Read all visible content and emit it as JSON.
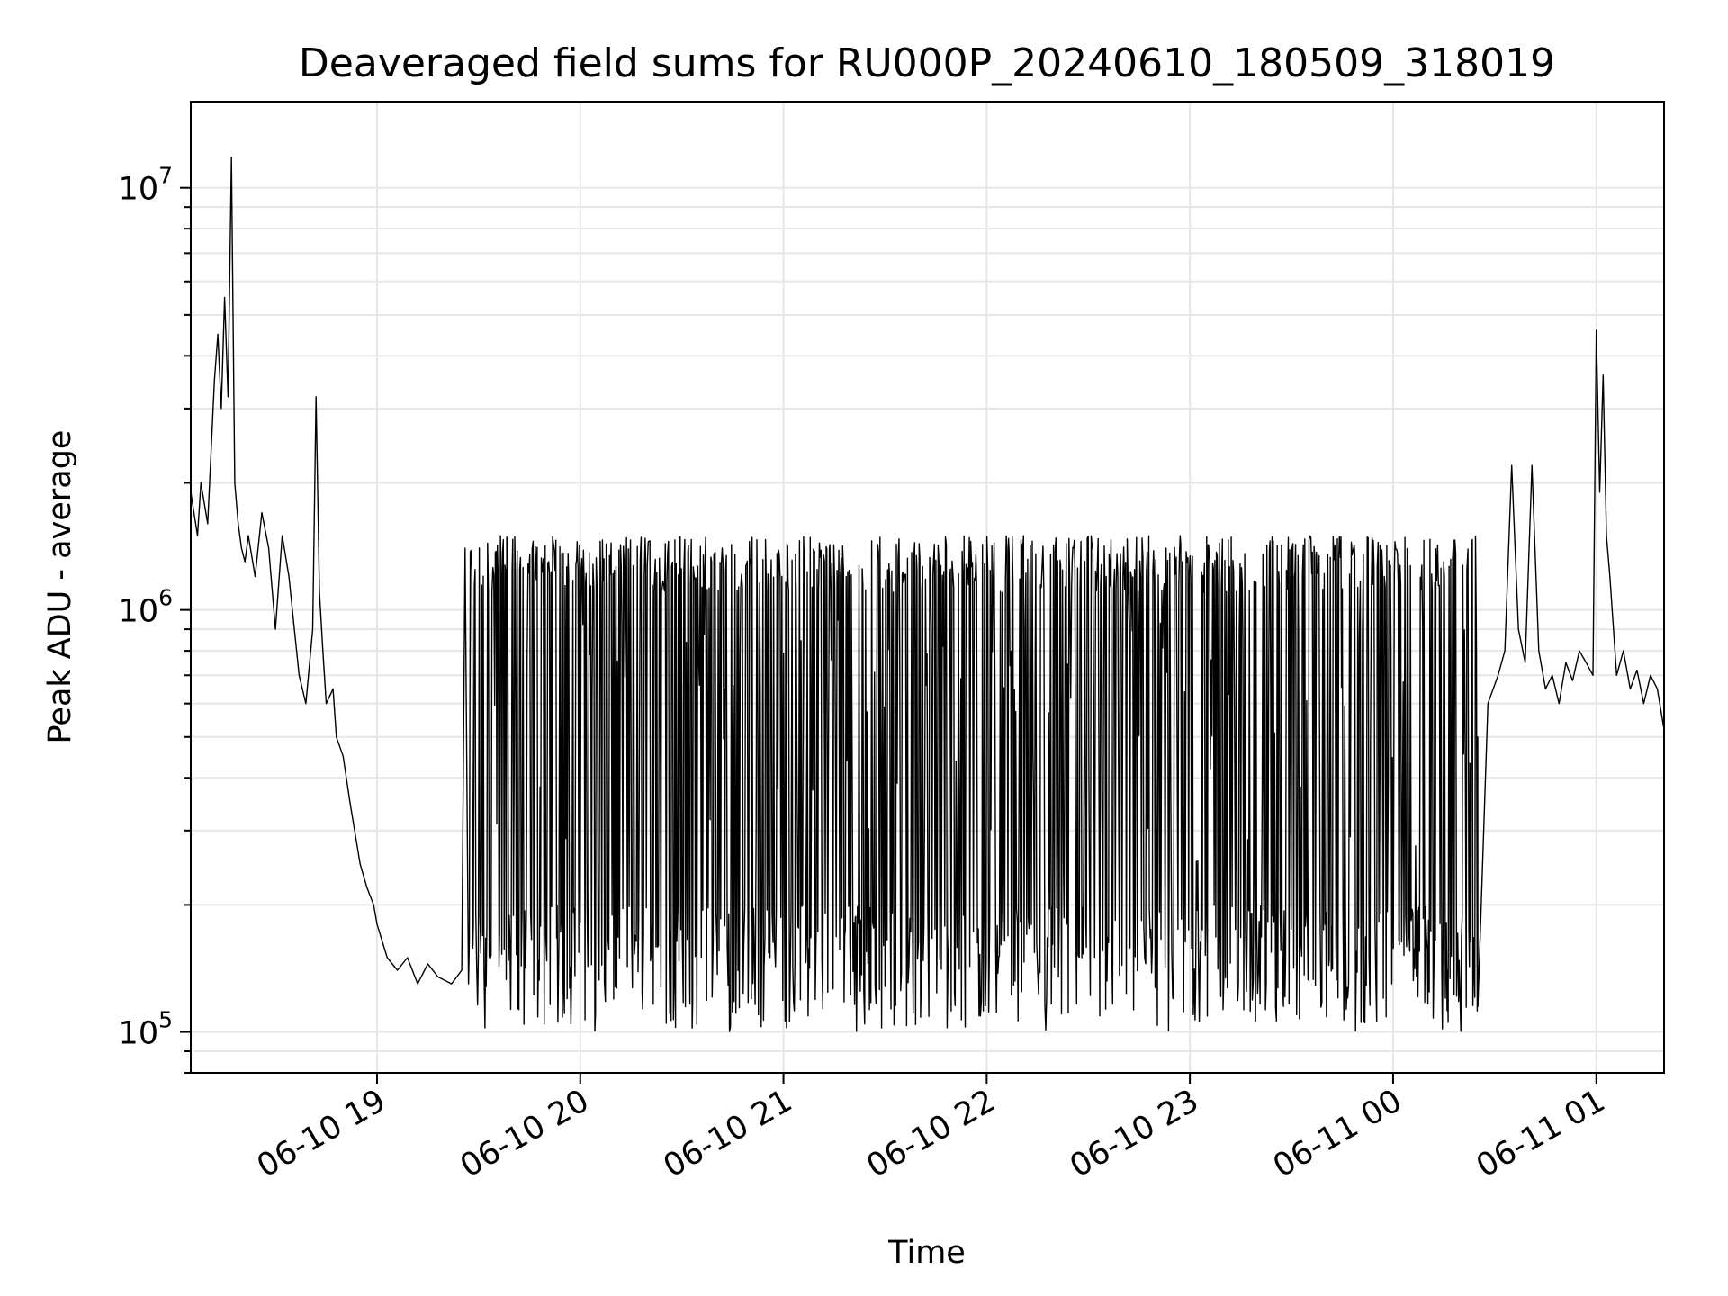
{
  "chart_data": {
    "type": "line",
    "title": "Deaveraged field sums for RU000P_20240610_180509_318019",
    "xlabel": "Time",
    "ylabel": "Peak ADU - average",
    "yscale": "log",
    "ylim": [
      80000,
      16000000
    ],
    "xlim": [
      "2024-06-10 18:05",
      "2024-06-11 01:20"
    ],
    "grid": true,
    "line_color": "#000000",
    "grid_color": "#e6e6e6",
    "y_ticks": [
      {
        "base": "10",
        "exp": "5",
        "value": 100000
      },
      {
        "base": "10",
        "exp": "6",
        "value": 1000000
      },
      {
        "base": "10",
        "exp": "7",
        "value": 10000000
      }
    ],
    "x_ticks": [
      {
        "label": "06-10 19",
        "time": "2024-06-10 19:00"
      },
      {
        "label": "06-10 20",
        "time": "2024-06-10 20:00"
      },
      {
        "label": "06-10 21",
        "time": "2024-06-10 21:00"
      },
      {
        "label": "06-10 22",
        "time": "2024-06-10 22:00"
      },
      {
        "label": "06-10 23",
        "time": "2024-06-10 23:00"
      },
      {
        "label": "06-11 00",
        "time": "2024-06-11 00:00"
      },
      {
        "label": "06-11 01",
        "time": "2024-06-11 01:00"
      }
    ],
    "series": [
      {
        "x": [
          "2024-06-10 18:05",
          "2024-06-10 18:07",
          "2024-06-10 18:08",
          "2024-06-10 18:10",
          "2024-06-10 18:12",
          "2024-06-10 18:13",
          "2024-06-10 18:14",
          "2024-06-10 18:15",
          "2024-06-10 18:16",
          "2024-06-10 18:17",
          "2024-06-10 18:18",
          "2024-06-10 18:19",
          "2024-06-10 18:20",
          "2024-06-10 18:21",
          "2024-06-10 18:22",
          "2024-06-10 18:24",
          "2024-06-10 18:26",
          "2024-06-10 18:28",
          "2024-06-10 18:30",
          "2024-06-10 18:32",
          "2024-06-10 18:34",
          "2024-06-10 18:35",
          "2024-06-10 18:37",
          "2024-06-10 18:39",
          "2024-06-10 18:41",
          "2024-06-10 18:42",
          "2024-06-10 18:43",
          "2024-06-10 18:44",
          "2024-06-10 18:45",
          "2024-06-10 18:47",
          "2024-06-10 18:48",
          "2024-06-10 18:50",
          "2024-06-10 18:52",
          "2024-06-10 18:54",
          "2024-06-10 18:55",
          "2024-06-10 18:57",
          "2024-06-10 18:59",
          "2024-06-10 19:00",
          "2024-06-10 19:03",
          "2024-06-10 19:06",
          "2024-06-10 19:09",
          "2024-06-10 19:12",
          "2024-06-10 19:15",
          "2024-06-10 19:18",
          "2024-06-10 19:22",
          "2024-06-10 19:25",
          "2024-06-10 19:26",
          "2024-06-10 19:27"
        ],
        "y": [
          1900000,
          1500000,
          2000000,
          1600000,
          3500000,
          4500000,
          3000000,
          5500000,
          3200000,
          11800000,
          2000000,
          1600000,
          1400000,
          1300000,
          1500000,
          1200000,
          1700000,
          1400000,
          900000,
          1500000,
          1200000,
          1000000,
          700000,
          600000,
          900000,
          3200000,
          1100000,
          800000,
          600000,
          650000,
          500000,
          450000,
          350000,
          280000,
          250000,
          220000,
          200000,
          180000,
          150000,
          140000,
          150000,
          130000,
          145000,
          135000,
          130000,
          140000,
          1400000,
          130000
        ]
      }
    ],
    "dense_section": {
      "start": "2024-06-10 19:27",
      "end": "2024-06-11 00:25",
      "low_range": [
        100000,
        200000
      ],
      "high_range": [
        1100000,
        1500000
      ],
      "notes": "rapid oscillation between low and high levels"
    },
    "tail": {
      "x": [
        "2024-06-11 00:25",
        "2024-06-11 00:28",
        "2024-06-11 00:31",
        "2024-06-11 00:33",
        "2024-06-11 00:35",
        "2024-06-11 00:37",
        "2024-06-11 00:39",
        "2024-06-11 00:41",
        "2024-06-11 00:43",
        "2024-06-11 00:45",
        "2024-06-11 00:47",
        "2024-06-11 00:49",
        "2024-06-11 00:51",
        "2024-06-11 00:53",
        "2024-06-11 00:55",
        "2024-06-11 00:57",
        "2024-06-11 00:59",
        "2024-06-11 01:00",
        "2024-06-11 01:01",
        "2024-06-11 01:02",
        "2024-06-11 01:03",
        "2024-06-11 01:04",
        "2024-06-11 01:06",
        "2024-06-11 01:08",
        "2024-06-11 01:10",
        "2024-06-11 01:12",
        "2024-06-11 01:14",
        "2024-06-11 01:16",
        "2024-06-11 01:18",
        "2024-06-11 01:20"
      ],
      "y": [
        500000,
        600000,
        700000,
        800000,
        2200000,
        900000,
        750000,
        2200000,
        800000,
        650000,
        700000,
        600000,
        750000,
        680000,
        800000,
        750000,
        700000,
        4600000,
        1900000,
        3600000,
        1500000,
        1200000,
        700000,
        800000,
        650000,
        720000,
        600000,
        700000,
        650000,
        520000
      ]
    }
  }
}
